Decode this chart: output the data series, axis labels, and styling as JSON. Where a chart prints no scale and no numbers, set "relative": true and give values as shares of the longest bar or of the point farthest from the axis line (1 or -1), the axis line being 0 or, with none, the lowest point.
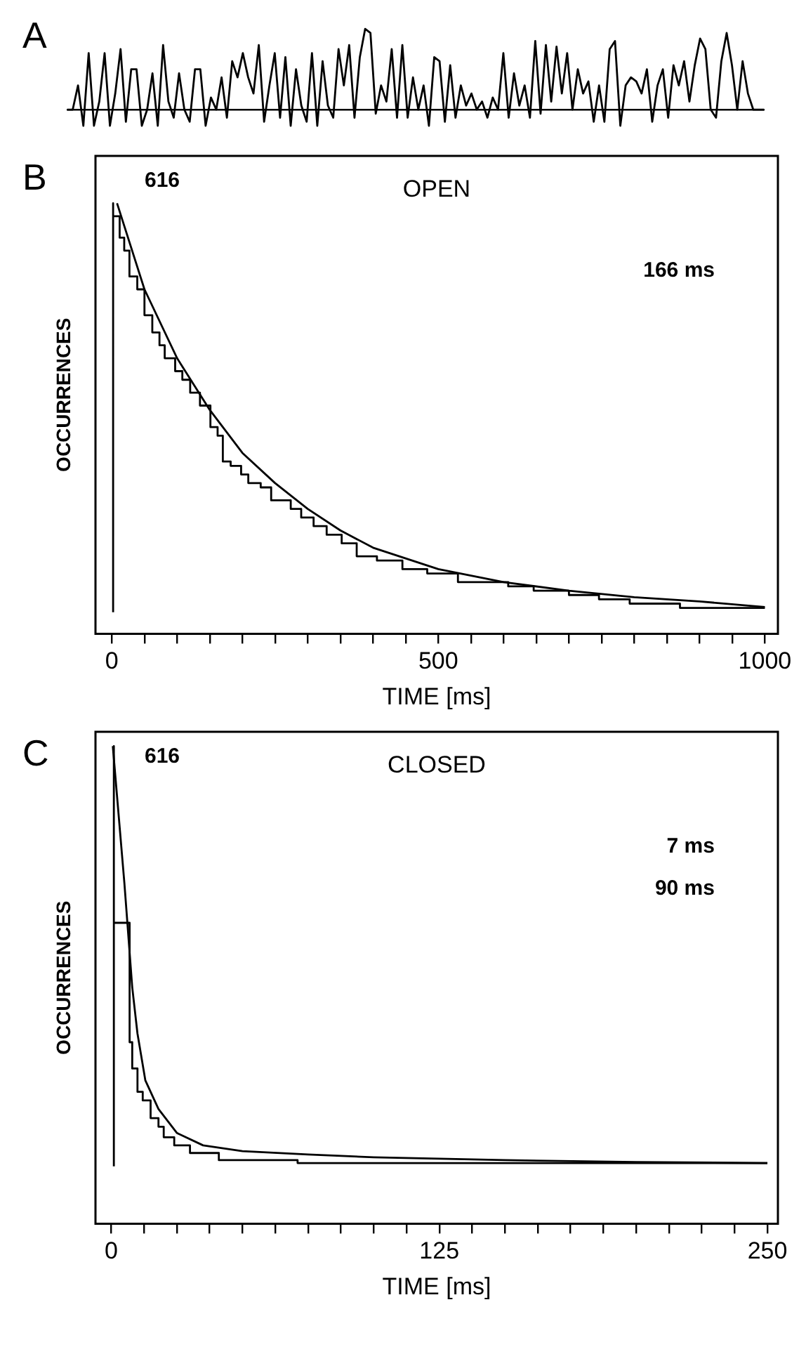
{
  "chart_data": [
    {
      "type": "line",
      "title": "A",
      "relative": true,
      "tick_labels": false,
      "categories": [
        null,
        null,
        null,
        null,
        null,
        null,
        null,
        null,
        null,
        null,
        null,
        null,
        null,
        null,
        null,
        null,
        null,
        null,
        null,
        null,
        null,
        null,
        null,
        null,
        null,
        null,
        null,
        null,
        null,
        null,
        null,
        null,
        null,
        null,
        null,
        null,
        null,
        null,
        null,
        null,
        null,
        null,
        null,
        null,
        null,
        null,
        null,
        null,
        null,
        null,
        null,
        null,
        null,
        null,
        null,
        null,
        null,
        null,
        null,
        null,
        null,
        null,
        null,
        null,
        null,
        null,
        null,
        null,
        null,
        null,
        null,
        null,
        null,
        null,
        null,
        null,
        null,
        null,
        null,
        null,
        null,
        null,
        null,
        null,
        null,
        null,
        null,
        null,
        null,
        null,
        null,
        null,
        null,
        null,
        null,
        null,
        null,
        null,
        null,
        null,
        null,
        null,
        null,
        null,
        null,
        null,
        null,
        null,
        null,
        null,
        null,
        null,
        null,
        null,
        null,
        null,
        null,
        null,
        null,
        null,
        null,
        null,
        null,
        null,
        null,
        null,
        null,
        null,
        null,
        null,
        null,
        null
      ],
      "series": [
        {
          "color": "#000000",
          "values": [
            0,
            0,
            0.3,
            -0.2,
            0.7,
            -0.2,
            0.1,
            0.7,
            -0.2,
            0.2,
            0.75,
            -0.15,
            0.5,
            0.5,
            -0.2,
            0,
            0.45,
            -0.2,
            0.8,
            0.1,
            -0.1,
            0.45,
            0,
            -0.15,
            0.5,
            0.5,
            -0.2,
            0.15,
            0,
            0.4,
            -0.1,
            0.6,
            0.4,
            0.7,
            0.4,
            0.2,
            0.8,
            -0.15,
            0.3,
            0.7,
            -0.1,
            0.65,
            -0.2,
            0.5,
            0.05,
            -0.15,
            0.7,
            -0.2,
            0.6,
            0.05,
            -0.1,
            0.75,
            0.3,
            0.8,
            -0.1,
            0.65,
            1,
            0.95,
            -0.05,
            0.3,
            0.1,
            0.75,
            -0.1,
            0.8,
            -0.1,
            0.4,
            0,
            0.3,
            -0.2,
            0.65,
            0.6,
            -0.15,
            0.55,
            -0.1,
            0.3,
            0.05,
            0.2,
            0,
            0.1,
            -0.1,
            0.15,
            0,
            0.7,
            -0.1,
            0.45,
            0.05,
            0.3,
            -0.1,
            0.85,
            -0.05,
            0.8,
            0.1,
            0.78,
            0.2,
            0.7,
            0,
            0.5,
            0.2,
            0.35,
            -0.15,
            0.3,
            -0.15,
            0.75,
            0.85,
            -0.2,
            0.3,
            0.4,
            0.35,
            0.2,
            0.5,
            -0.15,
            0.3,
            0.5,
            -0.1,
            0.55,
            0.3,
            0.6,
            0.1,
            0.55,
            0.88,
            0.75,
            0,
            -0.1,
            0.6,
            0.95,
            0.55,
            0,
            0.6,
            0.2,
            0,
            0,
            0
          ]
        }
      ]
    },
    {
      "type": "step",
      "title": "B",
      "subtitle": "OPEN",
      "xlabel": "TIME [ms]",
      "ylabel": "OCCURRENCES",
      "relative": true,
      "tick_labels": "x",
      "annotations": [
        "616",
        "166 ms"
      ],
      "xlim": [
        -25,
        1020
      ],
      "xticks": [
        0,
        {
          "value": 50,
          "label": null
        },
        {
          "value": 100,
          "label": null
        },
        {
          "value": 150,
          "label": null
        },
        {
          "value": 200,
          "label": null
        },
        {
          "value": 250,
          "label": null
        },
        {
          "value": 300,
          "label": null
        },
        {
          "value": 350,
          "label": null
        },
        {
          "value": 400,
          "label": null
        },
        {
          "value": 450,
          "label": null
        },
        500,
        {
          "value": 550,
          "label": null
        },
        {
          "value": 600,
          "label": null
        },
        {
          "value": 650,
          "label": null
        },
        {
          "value": 700,
          "label": null
        },
        {
          "value": 750,
          "label": null
        },
        {
          "value": 800,
          "label": null
        },
        {
          "value": 850,
          "label": null
        },
        {
          "value": 900,
          "label": null
        },
        {
          "value": 950,
          "label": null
        },
        1000
      ],
      "series": [
        {
          "type": "step",
          "color": "#000000",
          "x": [
            2,
            2,
            12,
            19,
            27,
            39,
            50,
            62,
            73,
            81,
            97,
            108,
            120,
            135,
            151,
            162,
            170,
            182,
            198,
            209,
            228,
            244,
            274,
            290,
            309,
            329,
            352,
            375,
            406,
            445,
            483,
            530,
            607,
            646,
            700,
            746,
            793,
            870,
            909,
            963,
            1000
          ],
          "values": [
            0.05,
            1,
            0.97,
            0.92,
            0.89,
            0.83,
            0.8,
            0.74,
            0.7,
            0.67,
            0.64,
            0.61,
            0.59,
            0.56,
            0.53,
            0.48,
            0.46,
            0.4,
            0.39,
            0.37,
            0.35,
            0.34,
            0.31,
            0.29,
            0.27,
            0.25,
            0.23,
            0.21,
            0.18,
            0.17,
            0.15,
            0.14,
            0.12,
            0.11,
            0.1,
            0.09,
            0.08,
            0.07,
            0.06,
            0.06,
            0.06
          ]
        },
        {
          "type": "line",
          "color": "#000000",
          "x": [
            8,
            50,
            100,
            150,
            200,
            250,
            300,
            350,
            400,
            500,
            600,
            700,
            800,
            900,
            1000
          ],
          "values": [
            1,
            0.8,
            0.64,
            0.52,
            0.42,
            0.35,
            0.29,
            0.24,
            0.2,
            0.15,
            0.12,
            0.1,
            0.085,
            0.075,
            0.062
          ]
        }
      ]
    },
    {
      "type": "step",
      "title": "C",
      "subtitle": "CLOSED",
      "xlabel": "TIME [ms]",
      "ylabel": "OCCURRENCES",
      "relative": true,
      "tick_labels": "x",
      "annotations": [
        "616",
        "7 ms",
        "90 ms"
      ],
      "xlim": [
        -6,
        254
      ],
      "xticks": [
        0,
        {
          "value": 12.5,
          "label": null
        },
        {
          "value": 25,
          "label": null
        },
        {
          "value": 37.5,
          "label": null
        },
        {
          "value": 50,
          "label": null
        },
        {
          "value": 62.5,
          "label": null
        },
        {
          "value": 75,
          "label": null
        },
        {
          "value": 87.5,
          "label": null
        },
        {
          "value": 100,
          "label": null
        },
        {
          "value": 112.5,
          "label": null
        },
        125,
        {
          "value": 137.5,
          "label": null
        },
        {
          "value": 150,
          "label": null
        },
        {
          "value": 162.5,
          "label": null
        },
        {
          "value": 175,
          "label": null
        },
        {
          "value": 187.5,
          "label": null
        },
        {
          "value": 200,
          "label": null
        },
        {
          "value": 212.5,
          "label": null
        },
        {
          "value": 225,
          "label": null
        },
        {
          "value": 237.5,
          "label": null
        },
        250
      ],
      "series": [
        {
          "type": "step",
          "color": "#000000",
          "x": [
            1,
            1,
            5,
            7,
            8,
            10,
            12,
            15,
            18,
            20,
            24,
            30,
            41,
            71,
            93,
            250
          ],
          "values": [
            0.12,
            1,
            0.63,
            0.63,
            0.38,
            0.325,
            0.276,
            0.258,
            0.221,
            0.203,
            0.181,
            0.164,
            0.148,
            0.133,
            0.127,
            0.127
          ]
        },
        {
          "type": "line",
          "color": "#000000",
          "x": [
            0.6,
            5,
            8,
            10,
            13,
            18,
            25,
            35,
            50,
            75,
            100,
            150,
            200,
            250
          ],
          "values": [
            1,
            0.714,
            0.495,
            0.398,
            0.3,
            0.24,
            0.19,
            0.164,
            0.152,
            0.145,
            0.139,
            0.133,
            0.129,
            0.127
          ]
        }
      ]
    }
  ]
}
